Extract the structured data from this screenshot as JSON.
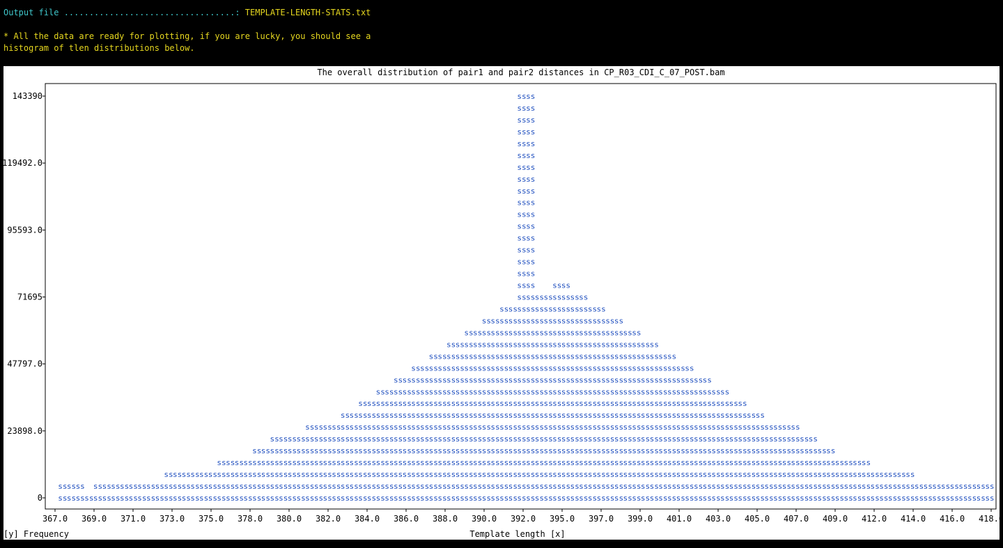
{
  "terminal": {
    "output_label": "Output file ..................................:",
    "output_value": " TEMPLATE-LENGTH-STATS.txt",
    "message_line1": "* All the data are ready for plotting, if you are lucky, you should see a",
    "message_line2": "histogram of tlen distributions below."
  },
  "colors": {
    "background": "#000000",
    "label_cyan": "#3fc5c9",
    "text_yellow": "#e5d61f",
    "bar_glyph": "#1f4fbf",
    "plot_bg": "#ffffff"
  },
  "chart_data": {
    "type": "bar",
    "title": "The overall distribution of pair1 and pair2 distances in CP_R03_CDI_C_07_POST.bam",
    "xlabel": "Template length [x]",
    "ylabel": "[y] Frequency",
    "bar_glyph": "s",
    "x_ticks": [
      "367.0",
      "369.0",
      "371.0",
      "373.0",
      "375.0",
      "378.0",
      "380.0",
      "382.0",
      "384.0",
      "386.0",
      "388.0",
      "390.0",
      "392.0",
      "395.0",
      "397.0",
      "399.0",
      "401.0",
      "403.0",
      "405.0",
      "407.0",
      "409.0",
      "412.0",
      "414.0",
      "416.0",
      "418.0"
    ],
    "y_ticks": [
      {
        "label": "143390",
        "value": 143390
      },
      {
        "label": "119492.0",
        "value": 119492
      },
      {
        "label": "95593.0",
        "value": 95593
      },
      {
        "label": "71695",
        "value": 71695
      },
      {
        "label": "47797.0",
        "value": 47797
      },
      {
        "label": "23898.0",
        "value": 23898
      },
      {
        "label": "0",
        "value": 0
      }
    ],
    "ylim": [
      0,
      143390
    ],
    "xlim": [
      366.4,
      420.0
    ],
    "grid": false,
    "bars": [
      {
        "x": 367.0,
        "y": 2800
      },
      {
        "x": 367.5,
        "y": 2800
      },
      {
        "x": 368.0,
        "y": 2800
      },
      {
        "x": 368.5,
        "y": 0
      },
      {
        "x": 369.0,
        "y": 2800
      },
      {
        "x": 369.5,
        "y": 2800
      },
      {
        "x": 370.0,
        "y": 2800
      },
      {
        "x": 370.5,
        "y": 2800
      },
      {
        "x": 371.0,
        "y": 2800
      },
      {
        "x": 371.5,
        "y": 2800
      },
      {
        "x": 372.0,
        "y": 2800
      },
      {
        "x": 372.5,
        "y": 2800
      },
      {
        "x": 373.0,
        "y": 6900
      },
      {
        "x": 373.5,
        "y": 6900
      },
      {
        "x": 374.0,
        "y": 6900
      },
      {
        "x": 374.5,
        "y": 6900
      },
      {
        "x": 375.0,
        "y": 6900
      },
      {
        "x": 375.5,
        "y": 6900
      },
      {
        "x": 376.0,
        "y": 11000
      },
      {
        "x": 376.5,
        "y": 11000
      },
      {
        "x": 377.0,
        "y": 11000
      },
      {
        "x": 377.5,
        "y": 11000
      },
      {
        "x": 378.0,
        "y": 15100
      },
      {
        "x": 378.5,
        "y": 15100
      },
      {
        "x": 379.0,
        "y": 19200
      },
      {
        "x": 379.5,
        "y": 19200
      },
      {
        "x": 380.0,
        "y": 19200
      },
      {
        "x": 380.5,
        "y": 19200
      },
      {
        "x": 381.0,
        "y": 23300
      },
      {
        "x": 381.5,
        "y": 23300
      },
      {
        "x": 382.0,
        "y": 27400
      },
      {
        "x": 382.5,
        "y": 27400
      },
      {
        "x": 383.0,
        "y": 31500
      },
      {
        "x": 383.5,
        "y": 31500
      },
      {
        "x": 384.0,
        "y": 35600
      },
      {
        "x": 384.5,
        "y": 35600
      },
      {
        "x": 385.0,
        "y": 39700
      },
      {
        "x": 385.5,
        "y": 39700
      },
      {
        "x": 386.0,
        "y": 43800
      },
      {
        "x": 386.5,
        "y": 43800
      },
      {
        "x": 387.0,
        "y": 47900
      },
      {
        "x": 387.5,
        "y": 47900
      },
      {
        "x": 388.0,
        "y": 52000
      },
      {
        "x": 388.5,
        "y": 52000
      },
      {
        "x": 389.0,
        "y": 56100
      },
      {
        "x": 389.5,
        "y": 56100
      },
      {
        "x": 390.0,
        "y": 60200
      },
      {
        "x": 390.5,
        "y": 60200
      },
      {
        "x": 391.0,
        "y": 64300
      },
      {
        "x": 391.5,
        "y": 64300
      },
      {
        "x": 392.0,
        "y": 68400
      },
      {
        "x": 392.5,
        "y": 68400
      },
      {
        "x": 393.0,
        "y": 143390
      },
      {
        "x": 393.5,
        "y": 143390
      },
      {
        "x": 394.0,
        "y": 72500
      },
      {
        "x": 394.5,
        "y": 72500
      },
      {
        "x": 395.0,
        "y": 76600
      },
      {
        "x": 395.5,
        "y": 76600
      },
      {
        "x": 396.0,
        "y": 72500
      },
      {
        "x": 396.5,
        "y": 72500
      },
      {
        "x": 397.0,
        "y": 68400
      },
      {
        "x": 397.5,
        "y": 68400
      },
      {
        "x": 398.0,
        "y": 64300
      },
      {
        "x": 398.5,
        "y": 64300
      },
      {
        "x": 399.0,
        "y": 60200
      },
      {
        "x": 399.5,
        "y": 60200
      },
      {
        "x": 400.0,
        "y": 56100
      },
      {
        "x": 400.5,
        "y": 56100
      },
      {
        "x": 401.0,
        "y": 52000
      },
      {
        "x": 401.5,
        "y": 52000
      },
      {
        "x": 402.0,
        "y": 47900
      },
      {
        "x": 402.5,
        "y": 47900
      },
      {
        "x": 403.0,
        "y": 43800
      },
      {
        "x": 403.5,
        "y": 43800
      },
      {
        "x": 404.0,
        "y": 39700
      },
      {
        "x": 404.5,
        "y": 39700
      },
      {
        "x": 405.0,
        "y": 35600
      },
      {
        "x": 405.5,
        "y": 35600
      },
      {
        "x": 406.0,
        "y": 31500
      },
      {
        "x": 406.5,
        "y": 31500
      },
      {
        "x": 407.0,
        "y": 27400
      },
      {
        "x": 407.5,
        "y": 27400
      },
      {
        "x": 408.0,
        "y": 23300
      },
      {
        "x": 408.5,
        "y": 23300
      },
      {
        "x": 409.0,
        "y": 19200
      },
      {
        "x": 409.5,
        "y": 19200
      },
      {
        "x": 410.0,
        "y": 15100
      },
      {
        "x": 410.5,
        "y": 15100
      },
      {
        "x": 411.0,
        "y": 11000
      },
      {
        "x": 411.5,
        "y": 11000
      },
      {
        "x": 412.0,
        "y": 11000
      },
      {
        "x": 412.5,
        "y": 11000
      },
      {
        "x": 413.0,
        "y": 6900
      },
      {
        "x": 413.5,
        "y": 6900
      },
      {
        "x": 414.0,
        "y": 6900
      },
      {
        "x": 414.5,
        "y": 6900
      },
      {
        "x": 415.0,
        "y": 6900
      },
      {
        "x": 415.5,
        "y": 2800
      },
      {
        "x": 416.0,
        "y": 2800
      },
      {
        "x": 416.5,
        "y": 2800
      },
      {
        "x": 417.0,
        "y": 2800
      },
      {
        "x": 417.5,
        "y": 2800
      },
      {
        "x": 418.0,
        "y": 2800
      },
      {
        "x": 418.5,
        "y": 2800
      },
      {
        "x": 419.0,
        "y": 2800
      },
      {
        "x": 419.5,
        "y": 2800
      }
    ]
  }
}
